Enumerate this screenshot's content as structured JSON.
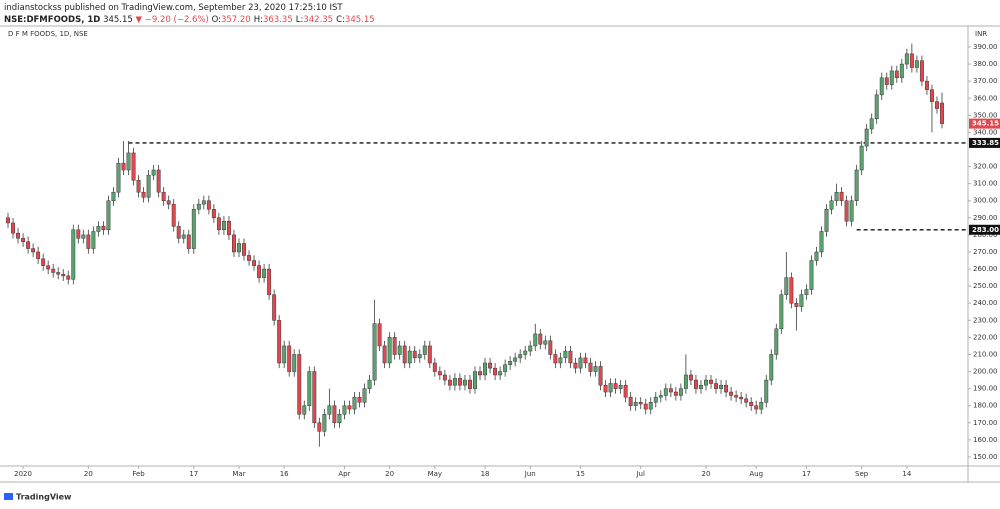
{
  "chart_data": {
    "type": "candlestick",
    "publisher": "indianstockss published on TradingView.com, September 23, 2020 17:25:10 IST",
    "symbol": "NSE:DFMFOODS, 1D",
    "last": "345.15",
    "change": "▼ −9.20 (−2.6%)",
    "ohlc_text": [
      {
        "key": "O:",
        "value": "357.20"
      },
      {
        "key": "H:",
        "value": "363.35"
      },
      {
        "key": "L:",
        "value": "342.35"
      },
      {
        "key": "C:",
        "value": "345.15"
      }
    ],
    "title": "D F M FOODS, 1D, NSE",
    "currency": "INR",
    "brand": "TradingView",
    "up_color": "#5aa36f",
    "down_color": "#e0484f",
    "border_color": "#3a3a3a",
    "categories": [
      null,
      null,
      null,
      "2020",
      null,
      null,
      null,
      null,
      null,
      null,
      null,
      null,
      null,
      null,
      null,
      null,
      "20",
      null,
      null,
      null,
      null,
      null,
      null,
      null,
      null,
      null,
      "Feb",
      null,
      null,
      null,
      null,
      null,
      null,
      null,
      null,
      null,
      null,
      "17",
      null,
      null,
      null,
      null,
      null,
      null,
      null,
      null,
      "Mar",
      null,
      null,
      null,
      null,
      null,
      null,
      null,
      null,
      "16",
      null,
      null,
      null,
      null,
      null,
      null,
      null,
      null,
      null,
      null,
      null,
      "Apr",
      null,
      null,
      null,
      null,
      null,
      null,
      null,
      null,
      "20",
      null,
      null,
      null,
      null,
      null,
      null,
      null,
      null,
      "May",
      null,
      null,
      null,
      null,
      null,
      null,
      null,
      null,
      null,
      "18",
      null,
      null,
      null,
      null,
      null,
      null,
      null,
      null,
      "Jun",
      null,
      null,
      null,
      null,
      null,
      null,
      null,
      null,
      null,
      "15",
      null,
      null,
      null,
      null,
      null,
      null,
      null,
      null,
      null,
      null,
      null,
      "Jul",
      null,
      null,
      null,
      null,
      null,
      null,
      null,
      null,
      null,
      null,
      null,
      null,
      "20",
      null,
      null,
      null,
      null,
      null,
      null,
      null,
      null,
      null,
      "Aug",
      null,
      null,
      null,
      null,
      null,
      null,
      null,
      null,
      null,
      "17",
      null,
      null,
      null,
      null,
      null,
      null,
      null,
      null,
      null,
      null,
      "Sep",
      null,
      null,
      null,
      null,
      null,
      null,
      null,
      null,
      "14",
      null,
      null,
      null,
      null,
      null,
      null,
      null
    ],
    "candles": [
      [
        290,
        293,
        284,
        287
      ],
      [
        287,
        290,
        278,
        281
      ],
      [
        281,
        284,
        275,
        278
      ],
      [
        278,
        281,
        273,
        276
      ],
      [
        276,
        279,
        269,
        272
      ],
      [
        272,
        275,
        267,
        270
      ],
      [
        270,
        273,
        263,
        266
      ],
      [
        266,
        269,
        259,
        262
      ],
      [
        262,
        265,
        257,
        260
      ],
      [
        260,
        263,
        255,
        258
      ],
      [
        258,
        261,
        254,
        257
      ],
      [
        257,
        260,
        253,
        256
      ],
      [
        256,
        259,
        251,
        254
      ],
      [
        254,
        286,
        251,
        283
      ],
      [
        283,
        286,
        275,
        278
      ],
      [
        278,
        283,
        275,
        280
      ],
      [
        280,
        283,
        269,
        272
      ],
      [
        272,
        285,
        269,
        282
      ],
      [
        282,
        288,
        279,
        285
      ],
      [
        285,
        288,
        280,
        283
      ],
      [
        283,
        303,
        280,
        300
      ],
      [
        300,
        308,
        297,
        305
      ],
      [
        305,
        325,
        302,
        322
      ],
      [
        322,
        335,
        315,
        318
      ],
      [
        318,
        335,
        315,
        328
      ],
      [
        328,
        331,
        309,
        312
      ],
      [
        312,
        315,
        302,
        305
      ],
      [
        305,
        308,
        299,
        302
      ],
      [
        302,
        318,
        299,
        315
      ],
      [
        315,
        321,
        312,
        318
      ],
      [
        318,
        321,
        302,
        305
      ],
      [
        305,
        308,
        297,
        300
      ],
      [
        300,
        303,
        295,
        298
      ],
      [
        298,
        301,
        282,
        285
      ],
      [
        285,
        288,
        275,
        278
      ],
      [
        278,
        283,
        275,
        280
      ],
      [
        280,
        283,
        269,
        272
      ],
      [
        272,
        298,
        269,
        295
      ],
      [
        295,
        301,
        292,
        298
      ],
      [
        298,
        303,
        295,
        300
      ],
      [
        300,
        303,
        292,
        295
      ],
      [
        295,
        298,
        287,
        290
      ],
      [
        290,
        293,
        280,
        283
      ],
      [
        283,
        291,
        280,
        288
      ],
      [
        288,
        291,
        277,
        280
      ],
      [
        280,
        283,
        267,
        270
      ],
      [
        270,
        278,
        267,
        275
      ],
      [
        275,
        278,
        265,
        268
      ],
      [
        268,
        271,
        262,
        265
      ],
      [
        265,
        268,
        259,
        262
      ],
      [
        262,
        265,
        252,
        255
      ],
      [
        255,
        263,
        252,
        260
      ],
      [
        260,
        263,
        242,
        245
      ],
      [
        245,
        248,
        227,
        230
      ],
      [
        230,
        233,
        202,
        205
      ],
      [
        205,
        218,
        202,
        215
      ],
      [
        215,
        218,
        197,
        200
      ],
      [
        200,
        213,
        197,
        210
      ],
      [
        210,
        213,
        172,
        175
      ],
      [
        175,
        183,
        172,
        180
      ],
      [
        180,
        203,
        177,
        200
      ],
      [
        200,
        203,
        167,
        170
      ],
      [
        170,
        173,
        156,
        165
      ],
      [
        165,
        178,
        162,
        175
      ],
      [
        175,
        190,
        172,
        180
      ],
      [
        180,
        183,
        167,
        170
      ],
      [
        170,
        178,
        167,
        175
      ],
      [
        175,
        183,
        172,
        180
      ],
      [
        180,
        183,
        175,
        178
      ],
      [
        178,
        188,
        175,
        185
      ],
      [
        185,
        188,
        179,
        182
      ],
      [
        182,
        193,
        179,
        190
      ],
      [
        190,
        198,
        187,
        195
      ],
      [
        195,
        242,
        192,
        228
      ],
      [
        228,
        231,
        212,
        215
      ],
      [
        215,
        218,
        202,
        205
      ],
      [
        205,
        223,
        202,
        220
      ],
      [
        220,
        223,
        207,
        210
      ],
      [
        210,
        218,
        207,
        215
      ],
      [
        215,
        218,
        202,
        205
      ],
      [
        205,
        215,
        202,
        212
      ],
      [
        212,
        215,
        205,
        208
      ],
      [
        208,
        213,
        205,
        210
      ],
      [
        210,
        218,
        207,
        215
      ],
      [
        215,
        218,
        202,
        205
      ],
      [
        205,
        208,
        197,
        200
      ],
      [
        200,
        203,
        195,
        198
      ],
      [
        198,
        201,
        192,
        195
      ],
      [
        195,
        198,
        189,
        192
      ],
      [
        192,
        199,
        189,
        196
      ],
      [
        196,
        199,
        189,
        192
      ],
      [
        192,
        198,
        189,
        195
      ],
      [
        195,
        198,
        187,
        190
      ],
      [
        190,
        203,
        187,
        200
      ],
      [
        200,
        203,
        195,
        198
      ],
      [
        198,
        208,
        195,
        205
      ],
      [
        205,
        208,
        199,
        202
      ],
      [
        202,
        205,
        195,
        198
      ],
      [
        198,
        203,
        195,
        200
      ],
      [
        200,
        207,
        197,
        204
      ],
      [
        204,
        209,
        201,
        206
      ],
      [
        206,
        211,
        203,
        208
      ],
      [
        208,
        213,
        205,
        210
      ],
      [
        210,
        215,
        207,
        212
      ],
      [
        212,
        218,
        209,
        215
      ],
      [
        215,
        228,
        212,
        222
      ],
      [
        222,
        225,
        213,
        216
      ],
      [
        216,
        221,
        213,
        218
      ],
      [
        218,
        221,
        207,
        210
      ],
      [
        210,
        213,
        202,
        205
      ],
      [
        205,
        211,
        202,
        208
      ],
      [
        208,
        215,
        205,
        212
      ],
      [
        212,
        215,
        202,
        205
      ],
      [
        205,
        208,
        199,
        202
      ],
      [
        202,
        211,
        199,
        208
      ],
      [
        208,
        211,
        202,
        205
      ],
      [
        205,
        208,
        197,
        200
      ],
      [
        200,
        206,
        197,
        203
      ],
      [
        203,
        206,
        189,
        192
      ],
      [
        192,
        195,
        185,
        188
      ],
      [
        188,
        196,
        185,
        193
      ],
      [
        193,
        196,
        187,
        190
      ],
      [
        190,
        195,
        187,
        192
      ],
      [
        192,
        195,
        182,
        185
      ],
      [
        185,
        188,
        177,
        180
      ],
      [
        180,
        185,
        177,
        182
      ],
      [
        182,
        185,
        178,
        181
      ],
      [
        181,
        184,
        175,
        178
      ],
      [
        178,
        185,
        175,
        182
      ],
      [
        182,
        188,
        179,
        185
      ],
      [
        185,
        189,
        182,
        186
      ],
      [
        186,
        193,
        183,
        190
      ],
      [
        190,
        193,
        185,
        188
      ],
      [
        188,
        191,
        183,
        186
      ],
      [
        186,
        193,
        183,
        190
      ],
      [
        190,
        210,
        187,
        198
      ],
      [
        198,
        201,
        192,
        195
      ],
      [
        195,
        198,
        187,
        190
      ],
      [
        190,
        195,
        187,
        192
      ],
      [
        192,
        198,
        189,
        195
      ],
      [
        195,
        198,
        190,
        193
      ],
      [
        193,
        196,
        187,
        190
      ],
      [
        190,
        195,
        187,
        192
      ],
      [
        192,
        195,
        185,
        188
      ],
      [
        188,
        191,
        183,
        186
      ],
      [
        186,
        189,
        182,
        185
      ],
      [
        185,
        188,
        181,
        184
      ],
      [
        184,
        187,
        179,
        182
      ],
      [
        182,
        185,
        177,
        180
      ],
      [
        180,
        183,
        175,
        178
      ],
      [
        178,
        185,
        175,
        182
      ],
      [
        182,
        198,
        179,
        195
      ],
      [
        195,
        213,
        192,
        210
      ],
      [
        210,
        228,
        207,
        225
      ],
      [
        225,
        248,
        222,
        245
      ],
      [
        245,
        270,
        242,
        255
      ],
      [
        255,
        258,
        237,
        240
      ],
      [
        240,
        243,
        224,
        238
      ],
      [
        238,
        248,
        235,
        245
      ],
      [
        245,
        251,
        242,
        248
      ],
      [
        248,
        268,
        245,
        265
      ],
      [
        265,
        273,
        262,
        270
      ],
      [
        270,
        285,
        267,
        282
      ],
      [
        282,
        298,
        279,
        295
      ],
      [
        295,
        303,
        292,
        300
      ],
      [
        300,
        310,
        297,
        305
      ],
      [
        305,
        308,
        297,
        300
      ],
      [
        300,
        303,
        285,
        288
      ],
      [
        288,
        303,
        285,
        300
      ],
      [
        300,
        321,
        297,
        318
      ],
      [
        318,
        335,
        315,
        332
      ],
      [
        332,
        345,
        329,
        342
      ],
      [
        342,
        351,
        339,
        348
      ],
      [
        348,
        365,
        345,
        362
      ],
      [
        362,
        375,
        359,
        372
      ],
      [
        372,
        375,
        365,
        368
      ],
      [
        368,
        379,
        365,
        376
      ],
      [
        376,
        379,
        369,
        372
      ],
      [
        372,
        383,
        369,
        380
      ],
      [
        380,
        389,
        377,
        386
      ],
      [
        386,
        392,
        375,
        378
      ],
      [
        378,
        385,
        375,
        382
      ],
      [
        382,
        385,
        367,
        370
      ],
      [
        370,
        373,
        362,
        365
      ],
      [
        365,
        368,
        340,
        358
      ],
      [
        358,
        361,
        351,
        354
      ],
      [
        357.2,
        363.35,
        342.35,
        345.15
      ]
    ],
    "last_price": {
      "value": 345.15,
      "label": "345.15"
    },
    "levels": [
      {
        "value": 333.85,
        "label": "333.85"
      },
      {
        "value": 283,
        "label": "283.00"
      }
    ],
    "ylim": [
      144.7,
      402.3
    ],
    "yticks": [
      {
        "value": 150,
        "label": "150.00"
      },
      {
        "value": 160,
        "label": "160.00"
      },
      {
        "value": 170,
        "label": "170.00"
      },
      {
        "value": 180,
        "label": "180.00"
      },
      {
        "value": 190,
        "label": "190.00"
      },
      {
        "value": 200,
        "label": "200.00"
      },
      {
        "value": 210,
        "label": "210.00"
      },
      {
        "value": 220,
        "label": "220.00"
      },
      {
        "value": 230,
        "label": "230.00"
      },
      {
        "value": 240,
        "label": "240.00"
      },
      {
        "value": 250,
        "label": "250.00"
      },
      {
        "value": 260,
        "label": "260.00"
      },
      {
        "value": 270,
        "label": "270.00"
      },
      {
        "value": 280,
        "label": "280.00"
      },
      {
        "value": 290,
        "label": "290.00"
      },
      {
        "value": 300,
        "label": "300.00"
      },
      {
        "value": 310,
        "label": "310.00"
      },
      {
        "value": 320,
        "label": "320.00"
      },
      {
        "value": 340,
        "label": "340.00"
      },
      {
        "value": 350,
        "label": "350.00"
      },
      {
        "value": 360,
        "label": "360.00"
      },
      {
        "value": 370,
        "label": "370.00"
      },
      {
        "value": 380,
        "label": "380.00"
      },
      {
        "value": 390,
        "label": "390.00"
      }
    ],
    "grid": false
  }
}
